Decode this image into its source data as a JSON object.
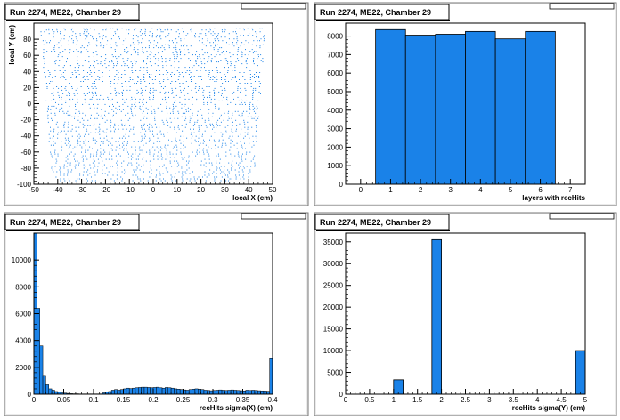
{
  "panel_title": "Run 2274, ME22, Chamber 29",
  "stats_box_label": "",
  "colors": {
    "fill": "#1a82e8",
    "frame": "#000000",
    "pad": "#ffffff",
    "panel_bg": "#eaeaea"
  },
  "chart_data": [
    {
      "type": "scatter",
      "title": "Run 2274, ME22, Chamber 29",
      "xlabel": "local X (cm)",
      "ylabel": "local Y (cm)",
      "xlim": [
        -50,
        50
      ],
      "ylim": [
        -100,
        100
      ],
      "xticks": [
        -50,
        -40,
        -30,
        -20,
        -10,
        0,
        10,
        20,
        30,
        40,
        50
      ],
      "yticks": [
        -100,
        -80,
        -60,
        -40,
        -20,
        0,
        20,
        40,
        60,
        80
      ],
      "description_shape": "trapezoid",
      "trapezoid": {
        "top_y": 95,
        "bottom_y": -95,
        "top_halfwidth": 47,
        "bottom_halfwidth": 42
      }
    },
    {
      "type": "bar",
      "title": "Run 2274, ME22, Chamber 29",
      "xlabel": "layers with recHits",
      "ylabel": "",
      "xlim": [
        -0.5,
        7.5
      ],
      "ylim": [
        0,
        8700
      ],
      "xticks": [
        0,
        1,
        2,
        3,
        4,
        5,
        6,
        7
      ],
      "yticks": [
        0,
        1000,
        2000,
        3000,
        4000,
        5000,
        6000,
        7000,
        8000
      ],
      "bins": [
        {
          "x0": 0.5,
          "x1": 1.5,
          "value": 8350
        },
        {
          "x0": 1.5,
          "x1": 2.5,
          "value": 8050
        },
        {
          "x0": 2.5,
          "x1": 3.5,
          "value": 8100
        },
        {
          "x0": 3.5,
          "x1": 4.5,
          "value": 8250
        },
        {
          "x0": 4.5,
          "x1": 5.5,
          "value": 7850
        },
        {
          "x0": 5.5,
          "x1": 6.5,
          "value": 8250
        }
      ]
    },
    {
      "type": "bar",
      "title": "Run 2274, ME22, Chamber 29",
      "xlabel": "recHits sigma(X) (cm)",
      "ylabel": "",
      "xlim": [
        0,
        0.4
      ],
      "ylim": [
        0,
        12000
      ],
      "xticks": [
        0,
        0.05,
        0.1,
        0.15,
        0.2,
        0.25,
        0.3,
        0.35,
        0.4
      ],
      "yticks": [
        0,
        2000,
        4000,
        6000,
        8000,
        10000
      ],
      "bin_width": 0.005,
      "values": [
        12000,
        6400,
        3600,
        1400,
        700,
        400,
        300,
        200,
        150,
        100,
        80,
        60,
        40,
        30,
        30,
        20,
        20,
        20,
        20,
        20,
        20,
        20,
        20,
        100,
        150,
        200,
        300,
        350,
        300,
        350,
        400,
        450,
        420,
        450,
        480,
        500,
        520,
        520,
        500,
        480,
        500,
        520,
        480,
        450,
        500,
        480,
        450,
        400,
        380,
        350,
        320,
        300,
        350,
        380,
        400,
        380,
        350,
        300,
        280,
        260,
        280,
        300,
        320,
        300,
        280,
        300,
        320,
        300,
        280,
        260,
        250,
        300,
        280,
        300,
        280,
        260,
        250,
        240,
        220,
        2700
      ]
    },
    {
      "type": "bar",
      "title": "Run 2274, ME22, Chamber 29",
      "xlabel": "recHits sigma(Y) (cm)",
      "ylabel": "",
      "xlim": [
        0,
        5
      ],
      "ylim": [
        0,
        37000
      ],
      "xticks": [
        0,
        0.5,
        1,
        1.5,
        2,
        2.5,
        3,
        3.5,
        4,
        4.5,
        5
      ],
      "yticks": [
        0,
        5000,
        10000,
        15000,
        20000,
        25000,
        30000,
        35000
      ],
      "bins": [
        {
          "x0": 1.0,
          "x1": 1.2,
          "value": 3300
        },
        {
          "x0": 1.8,
          "x1": 2.0,
          "value": 35500
        },
        {
          "x0": 4.8,
          "x1": 5.0,
          "value": 10000
        }
      ]
    }
  ]
}
